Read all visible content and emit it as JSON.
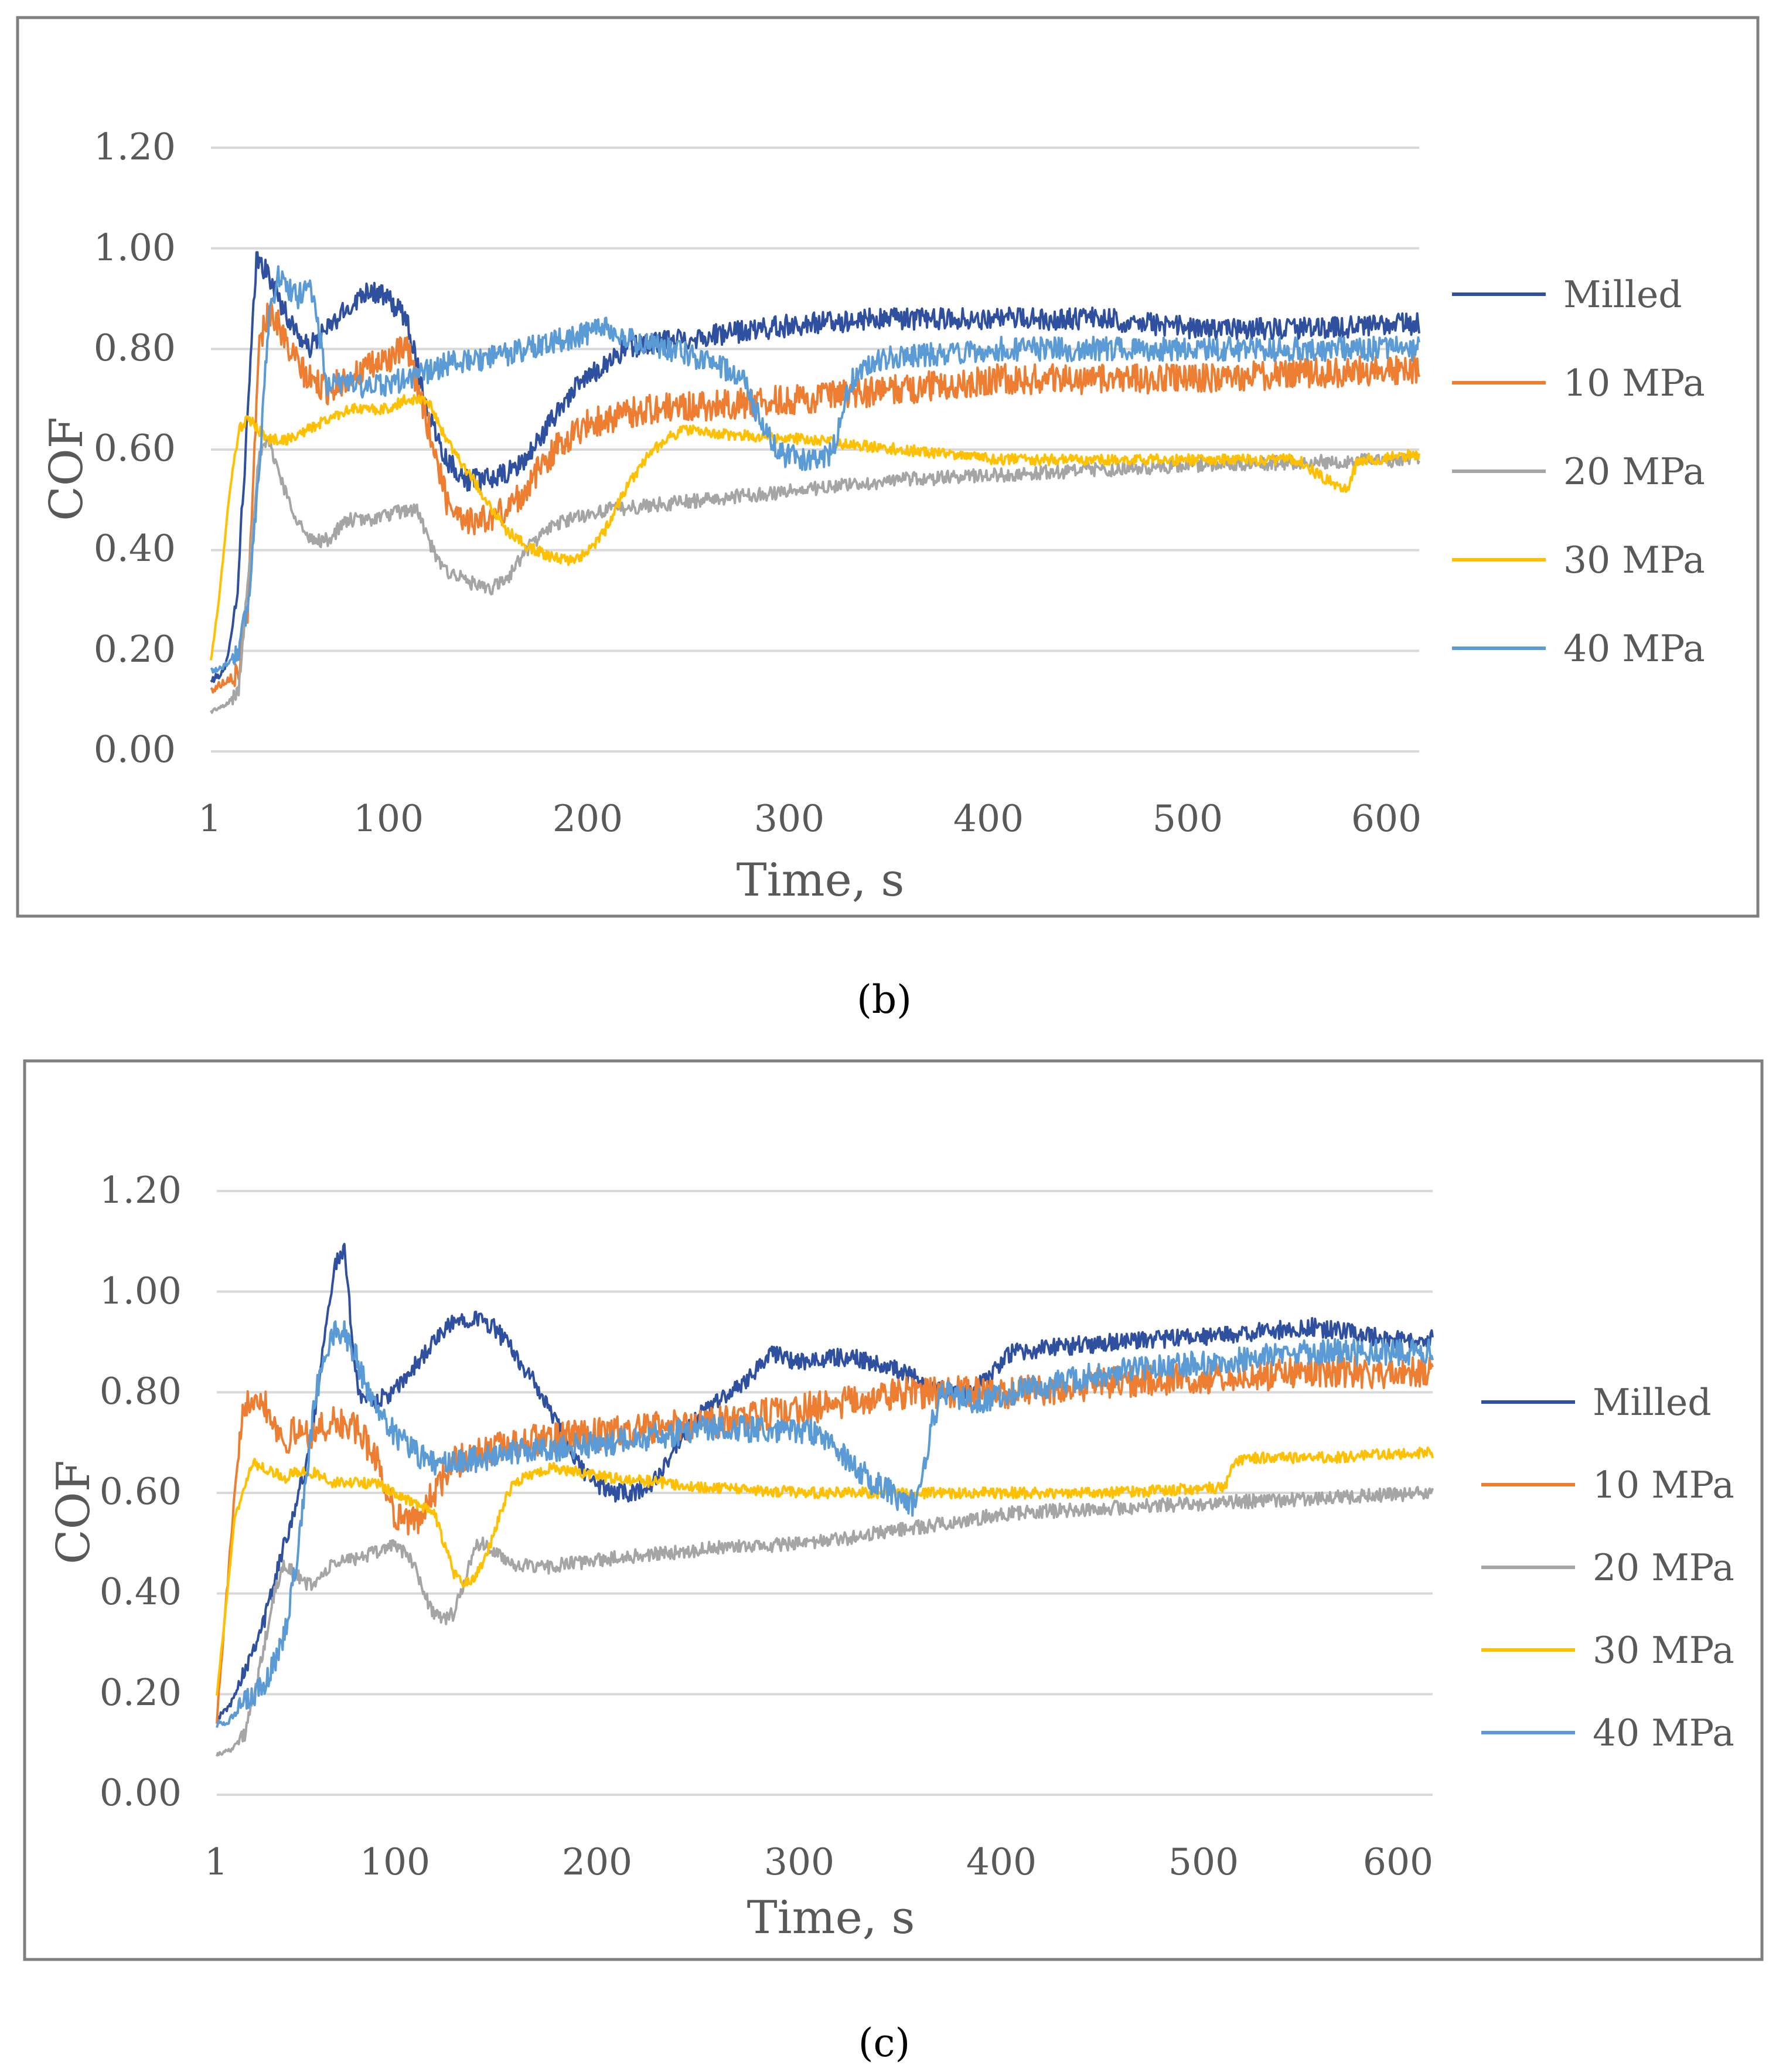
{
  "chart_data": [
    {
      "panel": "b",
      "type": "line",
      "xlabel": "Time, s",
      "ylabel": "COF",
      "xlim": [
        1,
        611
      ],
      "ylim": [
        0,
        1.2
      ],
      "x_tick_values": [
        1,
        100,
        200,
        300,
        400,
        500,
        600
      ],
      "x_tick_labels": [
        "1",
        "100",
        "200",
        "300",
        "400",
        "500",
        "600"
      ],
      "y_tick_values": [
        0,
        0.2,
        0.4,
        0.6,
        0.8,
        1.0,
        1.2
      ],
      "y_tick_labels": [
        "0.00",
        "0.20",
        "0.40",
        "0.60",
        "0.80",
        "1.00",
        "1.20"
      ],
      "grid": true,
      "legend_position": "right",
      "series": [
        {
          "name": "Milled",
          "color": "#2F4F9F",
          "noise": 0.022,
          "x": [
            1,
            8,
            14,
            20,
            24,
            28,
            32,
            40,
            50,
            60,
            70,
            80,
            90,
            100,
            110,
            120,
            130,
            140,
            150,
            160,
            170,
            180,
            190,
            200,
            210,
            220,
            240,
            260,
            300,
            340,
            400,
            450,
            500,
            550,
            611
          ],
          "y": [
            0.14,
            0.16,
            0.3,
            0.7,
            0.98,
            0.96,
            0.93,
            0.86,
            0.8,
            0.84,
            0.88,
            0.92,
            0.9,
            0.86,
            0.68,
            0.58,
            0.54,
            0.54,
            0.55,
            0.58,
            0.64,
            0.7,
            0.74,
            0.77,
            0.8,
            0.81,
            0.82,
            0.83,
            0.85,
            0.86,
            0.86,
            0.86,
            0.84,
            0.84,
            0.85
          ]
        },
        {
          "name": "10 MPa",
          "color": "#ED7D31",
          "noise": 0.03,
          "x": [
            1,
            8,
            15,
            20,
            25,
            30,
            35,
            40,
            50,
            60,
            70,
            80,
            90,
            100,
            110,
            120,
            130,
            140,
            150,
            160,
            170,
            180,
            190,
            200,
            220,
            260,
            300,
            350,
            400,
            450,
            500,
            550,
            611
          ],
          "y": [
            0.12,
            0.14,
            0.16,
            0.3,
            0.8,
            0.88,
            0.85,
            0.8,
            0.74,
            0.72,
            0.74,
            0.76,
            0.78,
            0.8,
            0.66,
            0.5,
            0.46,
            0.46,
            0.48,
            0.52,
            0.58,
            0.62,
            0.65,
            0.66,
            0.68,
            0.69,
            0.7,
            0.72,
            0.74,
            0.74,
            0.74,
            0.75,
            0.76
          ]
        },
        {
          "name": "20 MPa",
          "color": "#A5A5A5",
          "noise": 0.014,
          "x": [
            1,
            8,
            15,
            20,
            25,
            30,
            40,
            50,
            60,
            70,
            80,
            90,
            100,
            105,
            115,
            120,
            130,
            140,
            150,
            160,
            170,
            180,
            200,
            250,
            300,
            350,
            400,
            500,
            611
          ],
          "y": [
            0.08,
            0.09,
            0.12,
            0.36,
            0.58,
            0.62,
            0.5,
            0.42,
            0.42,
            0.46,
            0.46,
            0.47,
            0.48,
            0.48,
            0.38,
            0.36,
            0.34,
            0.32,
            0.34,
            0.4,
            0.44,
            0.46,
            0.48,
            0.5,
            0.52,
            0.54,
            0.55,
            0.57,
            0.58
          ]
        },
        {
          "name": "30 MPa",
          "color": "#FFC000",
          "noise": 0.011,
          "x": [
            1,
            5,
            10,
            15,
            20,
            25,
            30,
            40,
            50,
            60,
            70,
            80,
            90,
            100,
            110,
            120,
            130,
            140,
            150,
            160,
            170,
            180,
            190,
            200,
            210,
            220,
            230,
            240,
            260,
            300,
            350,
            400,
            500,
            550,
            560,
            570,
            575,
            580,
            585,
            611
          ],
          "y": [
            0.18,
            0.3,
            0.5,
            0.64,
            0.66,
            0.64,
            0.62,
            0.62,
            0.64,
            0.66,
            0.68,
            0.68,
            0.68,
            0.7,
            0.7,
            0.62,
            0.56,
            0.5,
            0.44,
            0.41,
            0.39,
            0.38,
            0.39,
            0.44,
            0.52,
            0.58,
            0.62,
            0.64,
            0.63,
            0.62,
            0.6,
            0.58,
            0.58,
            0.58,
            0.55,
            0.53,
            0.52,
            0.58,
            0.58,
            0.59
          ]
        },
        {
          "name": "40 MPa",
          "color": "#5B9BD5",
          "noise": 0.024,
          "x": [
            1,
            8,
            15,
            20,
            25,
            30,
            35,
            40,
            45,
            50,
            55,
            60,
            70,
            80,
            100,
            120,
            140,
            160,
            180,
            200,
            210,
            230,
            250,
            270,
            280,
            290,
            300,
            310,
            315,
            320,
            325,
            330,
            340,
            400,
            500,
            611
          ],
          "y": [
            0.16,
            0.17,
            0.2,
            0.3,
            0.55,
            0.85,
            0.95,
            0.92,
            0.9,
            0.94,
            0.85,
            0.72,
            0.74,
            0.72,
            0.74,
            0.77,
            0.78,
            0.8,
            0.82,
            0.84,
            0.82,
            0.8,
            0.78,
            0.74,
            0.64,
            0.59,
            0.58,
            0.58,
            0.6,
            0.68,
            0.74,
            0.76,
            0.78,
            0.8,
            0.8,
            0.8
          ]
        }
      ]
    },
    {
      "panel": "c",
      "type": "line",
      "xlabel": "Time, s",
      "ylabel": "COF",
      "xlim": [
        1,
        611
      ],
      "ylim": [
        0,
        1.2
      ],
      "x_tick_values": [
        1,
        100,
        200,
        300,
        400,
        500,
        600
      ],
      "x_tick_labels": [
        "1",
        "100",
        "200",
        "300",
        "400",
        "500",
        "600"
      ],
      "y_tick_values": [
        0,
        0.2,
        0.4,
        0.6,
        0.8,
        1.0,
        1.2
      ],
      "y_tick_labels": [
        "0.00",
        "0.20",
        "0.40",
        "0.60",
        "0.80",
        "1.00",
        "1.20"
      ],
      "grid": true,
      "legend_position": "right",
      "series": [
        {
          "name": "Milled",
          "color": "#2F4F9F",
          "noise": 0.018,
          "x": [
            1,
            8,
            15,
            25,
            35,
            45,
            50,
            55,
            60,
            65,
            68,
            72,
            80,
            90,
            100,
            110,
            120,
            130,
            140,
            150,
            160,
            170,
            180,
            190,
            200,
            210,
            220,
            230,
            240,
            250,
            260,
            270,
            280,
            290,
            300,
            310,
            320,
            330,
            340,
            350,
            360,
            370,
            380,
            390,
            400,
            450,
            500,
            550,
            600,
            611
          ],
          "y": [
            0.15,
            0.18,
            0.25,
            0.35,
            0.5,
            0.64,
            0.75,
            0.92,
            1.05,
            1.08,
            0.95,
            0.8,
            0.78,
            0.8,
            0.85,
            0.9,
            0.94,
            0.95,
            0.93,
            0.88,
            0.82,
            0.75,
            0.67,
            0.62,
            0.6,
            0.6,
            0.62,
            0.68,
            0.74,
            0.78,
            0.8,
            0.84,
            0.88,
            0.86,
            0.86,
            0.87,
            0.87,
            0.86,
            0.85,
            0.83,
            0.81,
            0.8,
            0.8,
            0.84,
            0.88,
            0.9,
            0.91,
            0.93,
            0.9,
            0.91
          ]
        },
        {
          "name": "10 MPa",
          "color": "#ED7D31",
          "noise": 0.032,
          "x": [
            1,
            5,
            10,
            15,
            20,
            25,
            30,
            35,
            40,
            50,
            60,
            70,
            80,
            90,
            100,
            110,
            120,
            150,
            200,
            250,
            300,
            350,
            400,
            450,
            500,
            550,
            611
          ],
          "y": [
            0.15,
            0.35,
            0.6,
            0.78,
            0.8,
            0.78,
            0.74,
            0.7,
            0.72,
            0.72,
            0.74,
            0.73,
            0.68,
            0.56,
            0.54,
            0.6,
            0.66,
            0.7,
            0.72,
            0.74,
            0.77,
            0.8,
            0.8,
            0.82,
            0.83,
            0.84,
            0.84
          ]
        },
        {
          "name": "20 MPa",
          "color": "#A5A5A5",
          "noise": 0.014,
          "x": [
            1,
            8,
            15,
            20,
            25,
            30,
            35,
            40,
            45,
            50,
            60,
            70,
            80,
            90,
            100,
            105,
            110,
            115,
            120,
            125,
            130,
            135,
            140,
            150,
            160,
            200,
            250,
            300,
            350,
            400,
            500,
            611
          ],
          "y": [
            0.08,
            0.09,
            0.12,
            0.2,
            0.3,
            0.4,
            0.46,
            0.44,
            0.42,
            0.42,
            0.46,
            0.47,
            0.48,
            0.5,
            0.46,
            0.4,
            0.36,
            0.35,
            0.36,
            0.42,
            0.49,
            0.5,
            0.48,
            0.46,
            0.45,
            0.47,
            0.49,
            0.5,
            0.53,
            0.56,
            0.58,
            0.6
          ]
        },
        {
          "name": "30 MPa",
          "color": "#FFC000",
          "noise": 0.011,
          "x": [
            1,
            5,
            10,
            15,
            20,
            25,
            30,
            35,
            40,
            50,
            60,
            70,
            80,
            90,
            100,
            110,
            115,
            120,
            125,
            130,
            135,
            140,
            145,
            150,
            160,
            170,
            200,
            250,
            300,
            350,
            400,
            450,
            500,
            507,
            510,
            520,
            560,
            600,
            611
          ],
          "y": [
            0.2,
            0.35,
            0.55,
            0.62,
            0.66,
            0.65,
            0.64,
            0.63,
            0.64,
            0.64,
            0.62,
            0.62,
            0.62,
            0.6,
            0.58,
            0.56,
            0.5,
            0.44,
            0.42,
            0.43,
            0.46,
            0.52,
            0.58,
            0.62,
            0.64,
            0.65,
            0.63,
            0.61,
            0.6,
            0.6,
            0.6,
            0.6,
            0.61,
            0.61,
            0.66,
            0.67,
            0.67,
            0.68,
            0.68
          ]
        },
        {
          "name": "40 MPa",
          "color": "#5B9BD5",
          "noise": 0.026,
          "x": [
            1,
            8,
            15,
            20,
            25,
            30,
            35,
            40,
            45,
            50,
            55,
            60,
            65,
            70,
            75,
            80,
            90,
            100,
            110,
            120,
            150,
            200,
            250,
            300,
            320,
            330,
            340,
            345,
            350,
            355,
            360,
            365,
            380,
            400,
            450,
            500,
            550,
            600,
            611
          ],
          "y": [
            0.14,
            0.15,
            0.18,
            0.2,
            0.22,
            0.26,
            0.32,
            0.44,
            0.6,
            0.78,
            0.88,
            0.92,
            0.92,
            0.88,
            0.82,
            0.78,
            0.72,
            0.68,
            0.66,
            0.66,
            0.68,
            0.7,
            0.73,
            0.72,
            0.66,
            0.62,
            0.6,
            0.58,
            0.58,
            0.62,
            0.74,
            0.8,
            0.78,
            0.8,
            0.84,
            0.86,
            0.88,
            0.88,
            0.88
          ]
        }
      ]
    }
  ],
  "captions": {
    "b": "(b)",
    "c": "(c)"
  }
}
